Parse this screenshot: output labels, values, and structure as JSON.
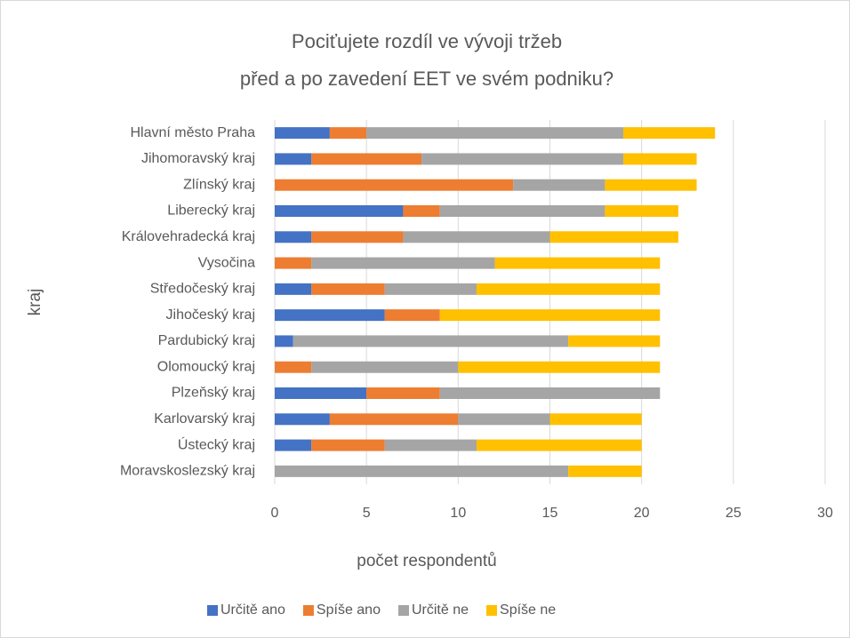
{
  "chart_data": {
    "type": "stacked_bar_horizontal",
    "title": [
      "Pociťujete rozdíl ve vývoji tržeb",
      "před a po zavedení EET ve svém podniku?"
    ],
    "xlabel": "počet respondentů",
    "ylabel": "kraj",
    "categories": [
      "Hlavní město Praha",
      "Jihomoravský kraj",
      "Zlínský kraj",
      "Liberecký kraj",
      "Královehradecká kraj",
      "Vysočina",
      "Středočeský kraj",
      "Jihočeský kraj",
      "Pardubický kraj",
      "Olomoucký kraj",
      "Plzeňský kraj",
      "Karlovarský kraj",
      "Ústecký kraj",
      "Moravskoslezský kraj"
    ],
    "series": [
      {
        "name": "Určitě ano",
        "color": "#4472c4",
        "values": [
          3,
          2,
          0,
          7,
          2,
          0,
          2,
          6,
          1,
          0,
          5,
          3,
          2,
          0
        ]
      },
      {
        "name": "Spíše ano",
        "color": "#ed7d31",
        "values": [
          2,
          6,
          13,
          2,
          5,
          2,
          4,
          3,
          0,
          2,
          4,
          7,
          4,
          0
        ]
      },
      {
        "name": "Určitě ne",
        "color": "#a5a5a5",
        "values": [
          14,
          11,
          5,
          9,
          8,
          10,
          5,
          0,
          15,
          8,
          12,
          5,
          5,
          16
        ]
      },
      {
        "name": "Spíše ne",
        "color": "#ffc000",
        "values": [
          5,
          4,
          5,
          4,
          7,
          9,
          10,
          12,
          5,
          11,
          0,
          5,
          9,
          4
        ]
      }
    ],
    "xlim": [
      0,
      30
    ],
    "xticks": [
      0,
      5,
      10,
      15,
      20,
      25,
      30
    ],
    "grid": true,
    "legend": "bottom"
  }
}
